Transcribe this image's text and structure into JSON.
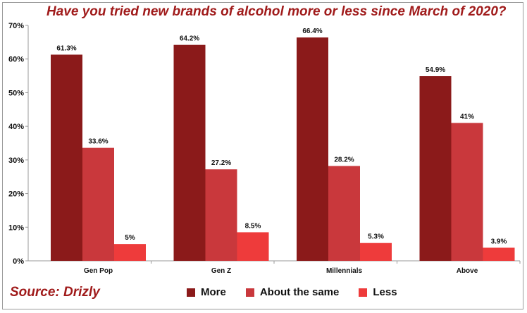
{
  "title": "Have you tried new brands of alcohol more or less since March of 2020?",
  "source": "Source: Drizly",
  "chart_data": {
    "type": "bar",
    "categories": [
      "Gen Pop",
      "Gen Z",
      "Millennials",
      "Above"
    ],
    "series": [
      {
        "name": "More",
        "color": "#8b1a1a",
        "values": [
          61.3,
          64.2,
          66.4,
          54.9
        ],
        "labels": [
          "61.3%",
          "64.2%",
          "66.4%",
          "54.9%"
        ]
      },
      {
        "name": "About the same",
        "color": "#c9383c",
        "values": [
          33.6,
          27.2,
          28.2,
          41
        ],
        "labels": [
          "33.6%",
          "27.2%",
          "28.2%",
          "41%"
        ]
      },
      {
        "name": "Less",
        "color": "#ee3b3b",
        "values": [
          5,
          8.5,
          5.3,
          3.9
        ],
        "labels": [
          "5%",
          "8.5%",
          "5.3%",
          "3.9%"
        ]
      }
    ],
    "ylim": [
      0,
      70
    ],
    "yticks": [
      0,
      10,
      20,
      30,
      40,
      50,
      60,
      70
    ],
    "ytick_labels": [
      "0%",
      "10%",
      "20%",
      "30%",
      "40%",
      "50%",
      "60%",
      "70%"
    ],
    "grid": false,
    "legend_position": "bottom"
  }
}
